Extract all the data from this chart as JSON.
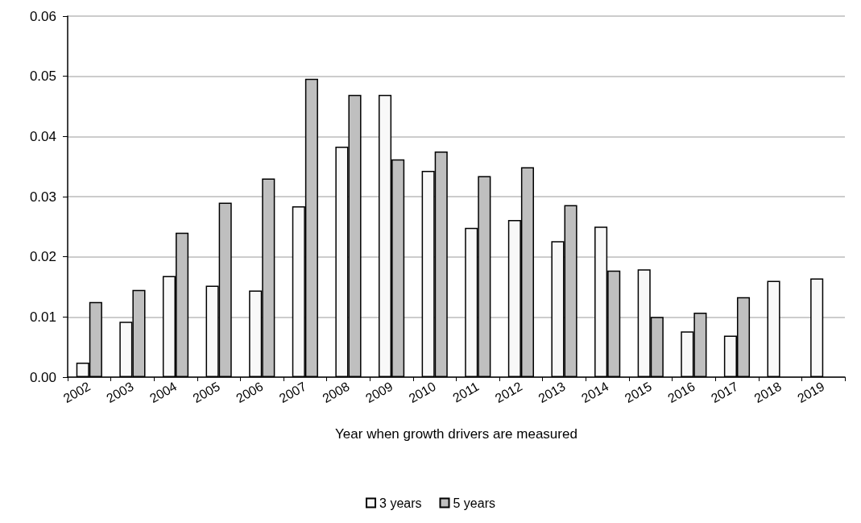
{
  "chart_data": {
    "type": "bar",
    "xlabel": "Year when growth drivers are measured",
    "categories": [
      "2002",
      "2003",
      "2004",
      "2005",
      "2006",
      "2007",
      "2008",
      "2009",
      "2010",
      "2011",
      "2012",
      "2013",
      "2014",
      "2015",
      "2016",
      "2017",
      "2018",
      "2019"
    ],
    "series": [
      {
        "name": "3 years",
        "color": "#f8f8f8",
        "values": [
          0.0024,
          0.0092,
          0.0168,
          0.0152,
          0.0144,
          0.0284,
          0.0383,
          0.0469,
          0.0343,
          0.0248,
          0.0261,
          0.0226,
          0.025,
          0.0179,
          0.0076,
          0.0069,
          0.016,
          0.0164
        ]
      },
      {
        "name": "5 years",
        "color": "#bfbfbf",
        "values": [
          0.0125,
          0.0145,
          0.024,
          0.029,
          0.033,
          0.0496,
          0.0469,
          0.0362,
          0.0375,
          0.0334,
          0.0349,
          0.0286,
          0.0177,
          0.01,
          0.0107,
          0.0133,
          null,
          null
        ]
      }
    ],
    "ylim": [
      0,
      0.06
    ],
    "yticks": [
      {
        "value": 0,
        "label": "0.00"
      },
      0.01,
      0.02,
      0.03,
      0.04,
      0.05,
      0.06
    ],
    "grid": "y",
    "legend": "bottom"
  }
}
